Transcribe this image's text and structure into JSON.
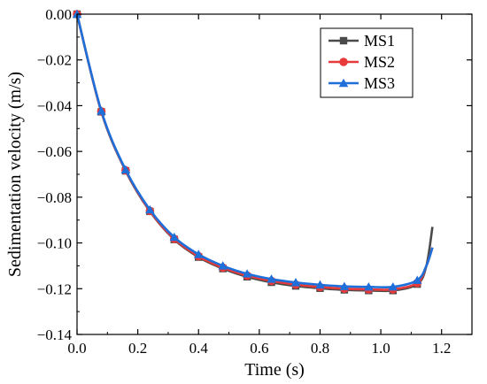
{
  "chart_data": {
    "type": "line",
    "xlabel": "Time (s)",
    "ylabel": "Sedimentation velocity (m/s)",
    "xlim": [
      0.0,
      1.3
    ],
    "ylim": [
      -0.14,
      0.0
    ],
    "x_ticks": [
      "0.0",
      "0.2",
      "0.4",
      "0.6",
      "0.8",
      "1.0",
      "1.2"
    ],
    "y_ticks": [
      "0.00",
      "−0.02",
      "−0.04",
      "−0.06",
      "−0.08",
      "−0.10",
      "−0.12",
      "−0.14"
    ],
    "x_tick_values": [
      0.0,
      0.2,
      0.4,
      0.6,
      0.8,
      1.0,
      1.2
    ],
    "y_tick_values": [
      0.0,
      -0.02,
      -0.04,
      -0.06,
      -0.08,
      -0.1,
      -0.12,
      -0.14
    ],
    "grid": false,
    "legend_position": "top-right",
    "series": [
      {
        "name": "MS1",
        "color": "#4a4a4a",
        "marker": "square",
        "x": [
          0.0,
          0.08,
          0.16,
          0.24,
          0.32,
          0.4,
          0.48,
          0.56,
          0.64,
          0.72,
          0.8,
          0.88,
          0.96,
          1.04,
          1.12,
          1.15,
          1.17
        ],
        "y": [
          0.0,
          -0.0427,
          -0.0685,
          -0.0862,
          -0.0985,
          -0.1062,
          -0.1112,
          -0.1148,
          -0.1172,
          -0.1188,
          -0.1198,
          -0.1205,
          -0.1208,
          -0.1208,
          -0.118,
          -0.11,
          -0.093
        ],
        "marker_indices": [
          0,
          1,
          2,
          3,
          4,
          5,
          6,
          7,
          8,
          9,
          10,
          11,
          12,
          13,
          14
        ]
      },
      {
        "name": "MS2",
        "color": "#e83a3a",
        "marker": "circle",
        "x": [
          0.0,
          0.08,
          0.16,
          0.24,
          0.32,
          0.4,
          0.48,
          0.56,
          0.64,
          0.72,
          0.8,
          0.88,
          0.96,
          1.04,
          1.12,
          1.15,
          1.17
        ],
        "y": [
          0.0,
          -0.0425,
          -0.0683,
          -0.086,
          -0.0982,
          -0.1058,
          -0.1108,
          -0.1143,
          -0.1166,
          -0.1182,
          -0.1193,
          -0.12,
          -0.1203,
          -0.1203,
          -0.1175,
          -0.11,
          -0.102
        ],
        "marker_indices": [
          0,
          1,
          2,
          3,
          4,
          5,
          6,
          7,
          8,
          9,
          10,
          11,
          12,
          13,
          14
        ]
      },
      {
        "name": "MS3",
        "color": "#1e6fd9",
        "marker": "triangle",
        "x": [
          0.0,
          0.08,
          0.16,
          0.24,
          0.32,
          0.4,
          0.48,
          0.56,
          0.64,
          0.72,
          0.8,
          0.88,
          0.96,
          1.04,
          1.12,
          1.15,
          1.17
        ],
        "y": [
          0.0,
          -0.0423,
          -0.068,
          -0.0855,
          -0.0975,
          -0.105,
          -0.11,
          -0.1135,
          -0.1158,
          -0.1173,
          -0.1183,
          -0.119,
          -0.1192,
          -0.1192,
          -0.1163,
          -0.11,
          -0.102
        ],
        "marker_indices": [
          0,
          1,
          2,
          3,
          4,
          5,
          6,
          7,
          8,
          9,
          10,
          11,
          12,
          13,
          14
        ]
      }
    ]
  }
}
